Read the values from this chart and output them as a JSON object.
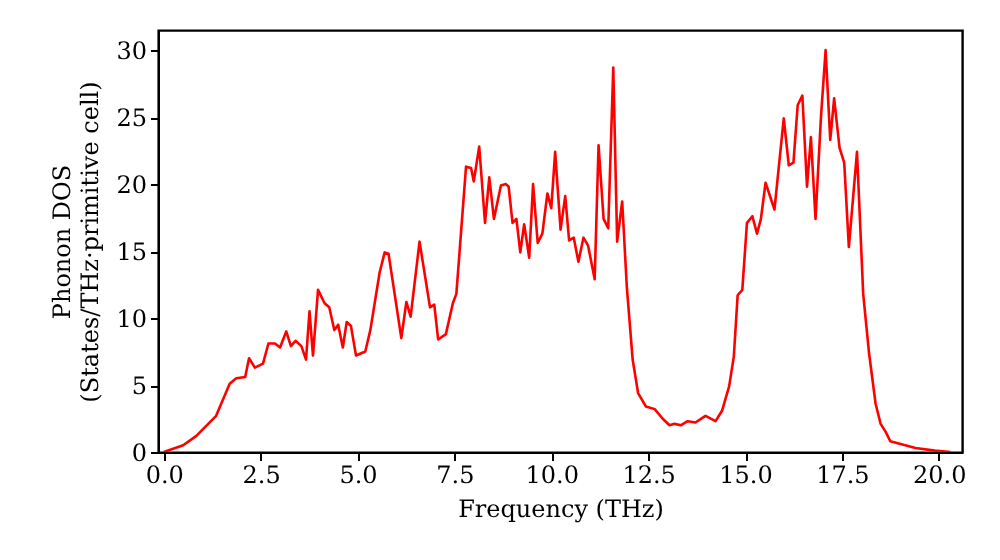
{
  "chart_data": {
    "type": "line",
    "xlabel": "Frequency (THz)",
    "ylabel": "Phonon DOS\n(States/THz·primitive cell)",
    "x": [
      0.0,
      0.5,
      0.84,
      1.35,
      1.7,
      1.87,
      2.1,
      2.2,
      2.35,
      2.56,
      2.7,
      2.87,
      3.0,
      3.16,
      3.28,
      3.4,
      3.55,
      3.67,
      3.76,
      3.85,
      3.98,
      4.15,
      4.27,
      4.4,
      4.5,
      4.62,
      4.72,
      4.83,
      4.96,
      5.2,
      5.33,
      5.57,
      5.7,
      5.8,
      6.13,
      6.26,
      6.37,
      6.6,
      6.87,
      6.98,
      7.08,
      7.28,
      7.46,
      7.55,
      7.8,
      7.93,
      8.0,
      8.14,
      8.29,
      8.4,
      8.52,
      8.7,
      8.83,
      8.9,
      9.0,
      9.1,
      9.2,
      9.3,
      9.43,
      9.53,
      9.65,
      9.77,
      9.9,
      10.0,
      10.1,
      10.24,
      10.36,
      10.46,
      10.58,
      10.7,
      10.83,
      10.95,
      11.12,
      11.22,
      11.35,
      11.47,
      11.6,
      11.7,
      11.83,
      11.95,
      12.1,
      12.24,
      12.44,
      12.67,
      12.87,
      13.05,
      13.18,
      13.35,
      13.52,
      13.72,
      13.98,
      14.24,
      14.41,
      14.59,
      14.71,
      14.81,
      14.93,
      15.05,
      15.19,
      15.31,
      15.41,
      15.53,
      15.76,
      16.0,
      16.13,
      16.25,
      16.36,
      16.48,
      16.6,
      16.7,
      16.82,
      16.96,
      17.08,
      17.2,
      17.3,
      17.44,
      17.56,
      17.68,
      17.89,
      18.05,
      18.2,
      18.37,
      18.5,
      18.63,
      18.75,
      19.4,
      19.9,
      20.3
    ],
    "series": [
      {
        "color": "#ff0000",
        "values": [
          0.0,
          0.5,
          1.2,
          2.7,
          5.1,
          5.5,
          5.6,
          7.0,
          6.3,
          6.6,
          8.1,
          8.1,
          7.8,
          9.0,
          7.9,
          8.3,
          7.9,
          6.9,
          10.5,
          7.2,
          12.1,
          11.1,
          10.8,
          9.1,
          9.5,
          7.8,
          9.7,
          9.4,
          7.2,
          7.5,
          9.1,
          13.4,
          14.9,
          14.8,
          8.5,
          11.2,
          10.1,
          15.7,
          10.8,
          11.0,
          8.4,
          8.8,
          11.1,
          11.8,
          21.3,
          21.2,
          20.2,
          22.8,
          17.1,
          20.5,
          17.4,
          19.9,
          20.0,
          19.8,
          17.1,
          17.4,
          14.9,
          17.0,
          14.5,
          20.0,
          15.6,
          16.3,
          19.3,
          18.2,
          22.4,
          16.6,
          19.1,
          15.8,
          16.0,
          14.2,
          16.0,
          15.4,
          12.9,
          22.9,
          17.4,
          16.7,
          28.7,
          15.7,
          18.7,
          12.3,
          6.9,
          4.4,
          3.4,
          3.2,
          2.5,
          2.0,
          2.1,
          2.0,
          2.3,
          2.2,
          2.7,
          2.3,
          3.1,
          4.9,
          7.1,
          11.7,
          12.1,
          17.1,
          17.6,
          16.3,
          17.4,
          20.1,
          18.1,
          24.9,
          21.4,
          21.6,
          25.9,
          26.6,
          19.8,
          23.5,
          17.4,
          25.0,
          30.0,
          23.3,
          26.4,
          22.7,
          21.6,
          15.3,
          22.4,
          11.8,
          7.4,
          3.6,
          2.1,
          1.5,
          0.8,
          0.3,
          0.1,
          0.0
        ]
      }
    ],
    "xlim": [
      -0.15,
      20.6
    ],
    "ylim": [
      0,
      31.5
    ],
    "xticks": [
      {
        "value": 0,
        "label": "0.0"
      },
      {
        "value": 2.5,
        "label": "2.5"
      },
      {
        "value": 5,
        "label": "5.0"
      },
      {
        "value": 7.5,
        "label": "7.5"
      },
      {
        "value": 10,
        "label": "10.0"
      },
      {
        "value": 12.5,
        "label": "12.5"
      },
      {
        "value": 15,
        "label": "15.0"
      },
      {
        "value": 17.5,
        "label": "17.5"
      },
      {
        "value": 20,
        "label": "20.0"
      }
    ],
    "yticks": [
      0,
      5,
      10,
      15,
      20,
      25,
      30
    ],
    "grid": false,
    "line_style": "solid",
    "marker": "none"
  }
}
